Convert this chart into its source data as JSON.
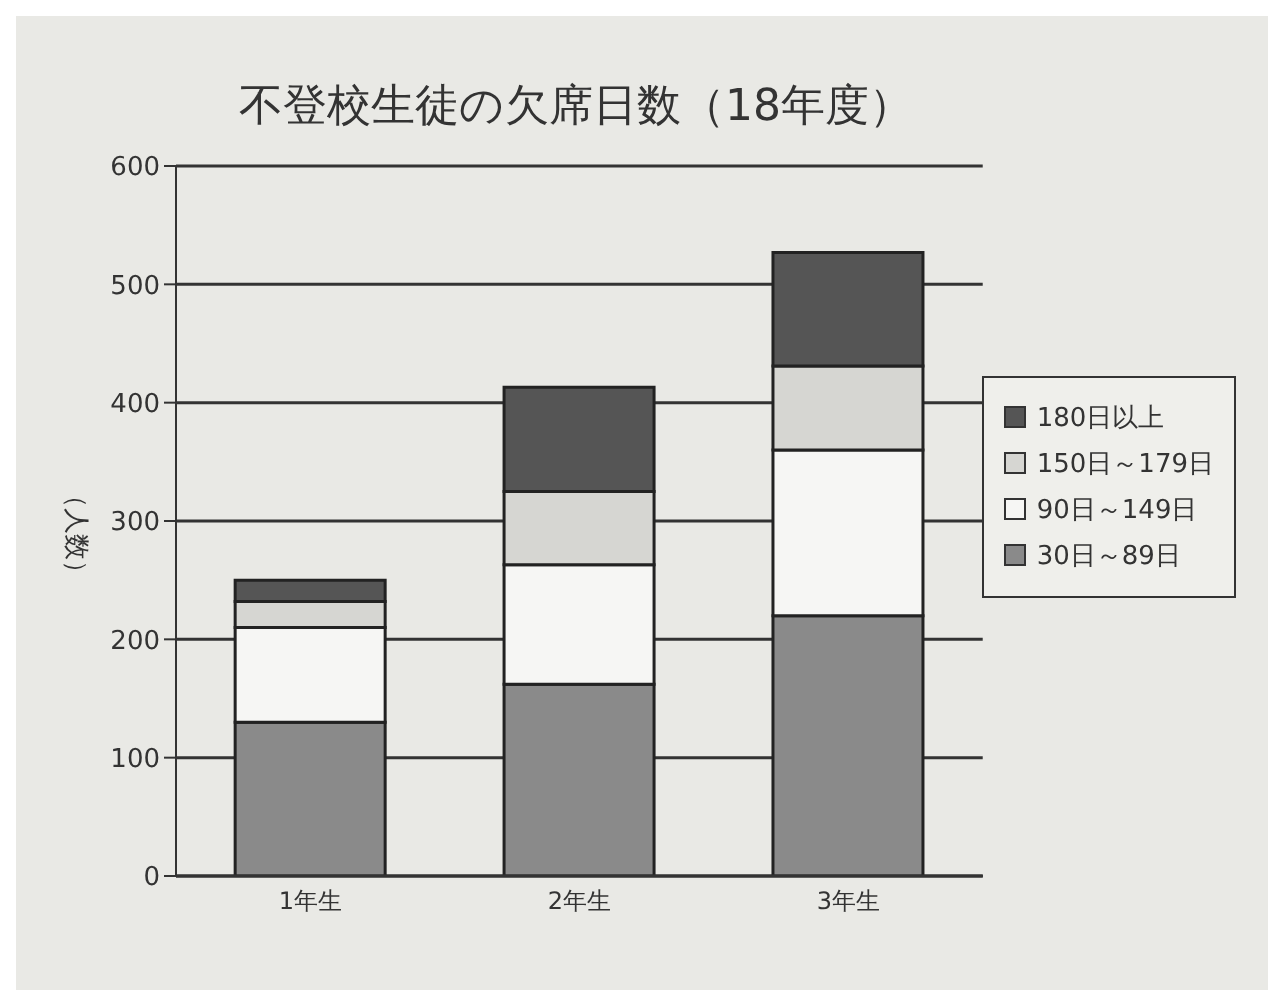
{
  "chart_data": {
    "type": "bar",
    "title": "不登校生徒の欠席日数（18年度）",
    "ylabel": "（人数）",
    "categories": [
      "1年生",
      "2年生",
      "3年生"
    ],
    "series": [
      {
        "name": "30日～89日",
        "color": "#8a8a8a",
        "values": [
          130,
          162,
          220
        ]
      },
      {
        "name": "90日～149日",
        "color": "#f6f6f4",
        "values": [
          80,
          101,
          140
        ]
      },
      {
        "name": "150日～179日",
        "color": "#d6d6d2",
        "values": [
          22,
          62,
          71
        ]
      },
      {
        "name": "180日以上",
        "color": "#555555",
        "values": [
          18,
          88,
          96
        ]
      }
    ],
    "stacked": true,
    "ylim": [
      0,
      600
    ],
    "yticks": [
      0,
      100,
      200,
      300,
      400,
      500,
      600
    ],
    "grid": "y",
    "legend": "right"
  }
}
